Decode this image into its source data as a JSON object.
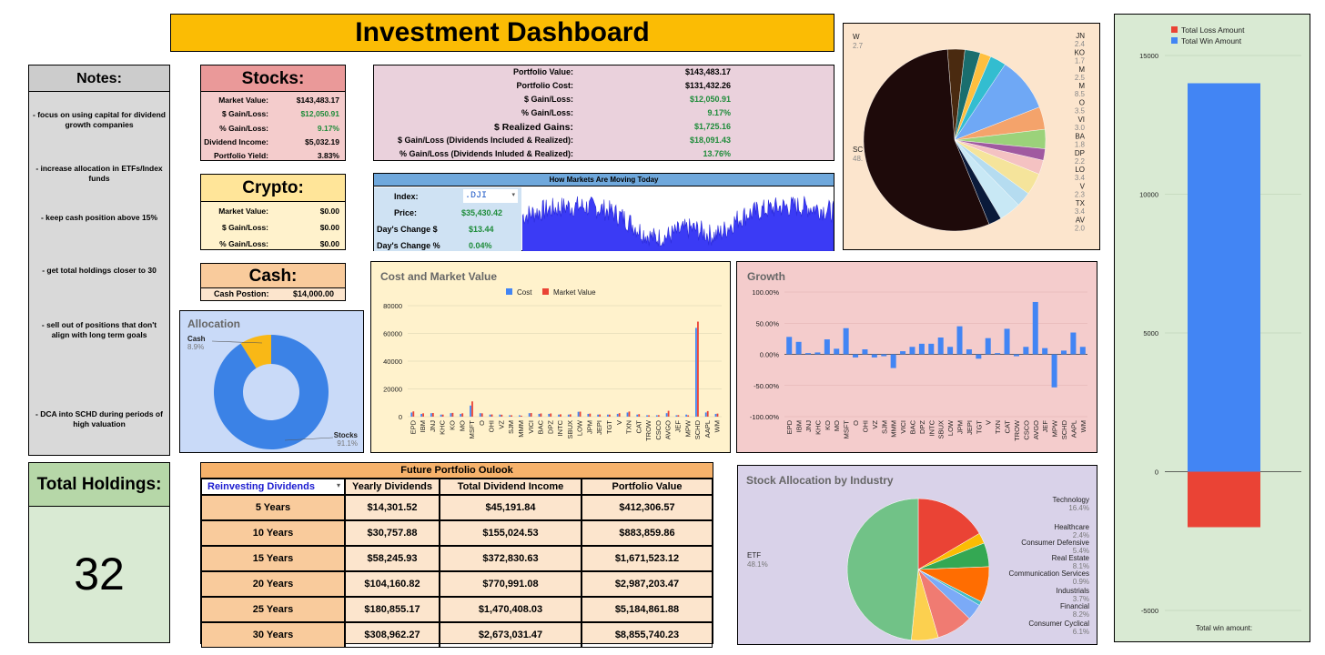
{
  "title": "Investment Dashboard",
  "notes": {
    "header": "Notes:",
    "items": [
      "- focus on using capital for dividend growth companies",
      "- increase allocation in ETFs/Index funds",
      "- keep cash position above 15%",
      "- get total holdings closer to 30",
      "- sell out of positions that don't align with long term goals",
      "- DCA into SCHD during periods of high valuation"
    ]
  },
  "total_holdings": {
    "label": "Total Holdings:",
    "value": "32"
  },
  "stocks": {
    "header": "Stocks:",
    "rows": [
      {
        "label": "Market Value:",
        "value": "$143,483.17",
        "color": "#000000"
      },
      {
        "label": "$ Gain/Loss:",
        "value": "$12,050.91",
        "color": "#1e8c3a"
      },
      {
        "label": "% Gain/Loss:",
        "value": "9.17%",
        "color": "#1e8c3a"
      },
      {
        "label": "Dividend Income:",
        "value": "$5,032.19",
        "color": "#000000"
      },
      {
        "label": "Portfolio Yield:",
        "value": "3.83%",
        "color": "#000000"
      }
    ]
  },
  "crypto": {
    "header": "Crypto:",
    "rows": [
      {
        "label": "Market Value:",
        "value": "$0.00"
      },
      {
        "label": "$ Gain/Loss:",
        "value": "$0.00"
      },
      {
        "label": "% Gain/Loss:",
        "value": "$0.00"
      }
    ]
  },
  "cash": {
    "header": "Cash:",
    "label": "Cash Postion:",
    "value": "$14,000.00"
  },
  "portfolio": {
    "rows": [
      {
        "label": "Portfolio Value:",
        "value": "$143,483.17",
        "color": "#000000"
      },
      {
        "label": "Portfolio Cost:",
        "value": "$131,432.26",
        "color": "#000000"
      },
      {
        "label": "$ Gain/Loss:",
        "value": "$12,050.91",
        "color": "#1e8c3a"
      },
      {
        "label": "% Gain/Loss:",
        "value": "9.17%",
        "color": "#1e8c3a"
      },
      {
        "label": "$ Realized Gains:",
        "value": "$1,725.16",
        "color": "#1e8c3a"
      },
      {
        "label": "$ Gain/Loss (Dividends Included & Realized):",
        "value": "$18,091.43",
        "color": "#1e8c3a"
      },
      {
        "label": "% Gain/Loss (Dividends Inluded & Realized):",
        "value": "13.76%",
        "color": "#1e8c3a"
      }
    ]
  },
  "markets": {
    "header": "How Markets Are Moving Today",
    "index_label": "Index:",
    "index_value": ".DJI",
    "price_label": "Price:",
    "price_value": "$35,430.42",
    "change_label": "Day's Change $",
    "change_value": "$13.44",
    "pct_label": "Day's Change %",
    "pct_value": "0.04%"
  },
  "future": {
    "header": "Future Portfolio Oulook",
    "select_value": "Reinvesting Dividends",
    "columns": [
      "Yearly Dividends",
      "Total Dividend Income",
      "Portfolio Value"
    ],
    "rows": [
      {
        "period": "5 Years",
        "yearly": "$14,301.52",
        "total": "$45,191.84",
        "value": "$412,306.57"
      },
      {
        "period": "10 Years",
        "yearly": "$30,757.88",
        "total": "$155,024.53",
        "value": "$883,859.86"
      },
      {
        "period": "15 Years",
        "yearly": "$58,245.93",
        "total": "$372,830.63",
        "value": "$1,671,523.12"
      },
      {
        "period": "20 Years",
        "yearly": "$104,160.82",
        "total": "$770,991.08",
        "value": "$2,987,203.47"
      },
      {
        "period": "25 Years",
        "yearly": "$180,855.17",
        "total": "$1,470,408.03",
        "value": "$5,184,861.88"
      },
      {
        "period": "30 Years",
        "yearly": "$308,962.27",
        "total": "$2,673,031.47",
        "value": "$8,855,740.23"
      }
    ]
  },
  "chart_data": [
    {
      "id": "holdings_pie",
      "type": "pie",
      "labels": [
        "W",
        "JN",
        "KO",
        "M",
        "M",
        "O",
        "VI",
        "BA",
        "DP",
        "LO",
        "V",
        "TX",
        "AV",
        "SC"
      ],
      "values": [
        2.7,
        2.4,
        1.7,
        2.5,
        8.5,
        3.5,
        3.0,
        1.8,
        2.2,
        3.4,
        2.3,
        3.4,
        2.0,
        48.0
      ],
      "value_labels": [
        "2.7",
        "2.4",
        "1.7",
        "2.5",
        "8.5",
        "3.5",
        "3.0",
        "1.8",
        "2.2",
        "3.4",
        "2.3",
        "3.4",
        "2.0",
        "48."
      ],
      "colors": [
        "#4a2a10",
        "#1a6e6e",
        "#ffbf3f",
        "#33bdd0",
        "#6fa8f5",
        "#f4a36b",
        "#9bd27a",
        "#a05aa0",
        "#f4c2c2",
        "#f5e49b",
        "#b5dcf0",
        "#c8e8f5",
        "#0a1a3a",
        "#1e0a0a"
      ]
    },
    {
      "id": "allocation",
      "type": "pie",
      "title": "Allocation",
      "labels": [
        "Cash",
        "Stocks"
      ],
      "values": [
        8.9,
        91.1
      ],
      "value_labels": [
        "8.9%",
        "91.1%"
      ],
      "colors": [
        "#f9b816",
        "#3b82e6"
      ]
    },
    {
      "id": "cost_market",
      "type": "bar",
      "title": "Cost and Market Value",
      "legend": [
        "Cost",
        "Market Value"
      ],
      "legend_position": "top",
      "categories": [
        "EPD",
        "IBM",
        "JNJ",
        "KHC",
        "KO",
        "MO",
        "MSFT",
        "O",
        "OHI",
        "VZ",
        "SJM",
        "MMM",
        "VICI",
        "BAC",
        "DPZ",
        "INTC",
        "SBUX",
        "LOW",
        "JPM",
        "JEPI",
        "TGT",
        "V",
        "TXN",
        "CAT",
        "TROW",
        "CSCO",
        "AVGO",
        "JEF",
        "MPW",
        "SCHD",
        "AAPL",
        "WM"
      ],
      "series": [
        {
          "name": "Cost",
          "color": "#4285f4",
          "values": [
            3000,
            2000,
            2500,
            1500,
            2500,
            2000,
            8000,
            2500,
            1500,
            1500,
            1000,
            1000,
            2500,
            2000,
            2000,
            1500,
            1500,
            3500,
            2000,
            1500,
            1500,
            2000,
            3000,
            1500,
            1000,
            1000,
            2500,
            1000,
            1500,
            64000,
            3000,
            2000
          ]
        },
        {
          "name": "Market Value",
          "color": "#ea4335",
          "values": [
            3800,
            2400,
            2600,
            1500,
            2700,
            2400,
            11000,
            2400,
            1600,
            1400,
            1000,
            700,
            2600,
            2300,
            2300,
            1700,
            1700,
            3600,
            2200,
            1600,
            1500,
            2500,
            3700,
            1800,
            1000,
            1100,
            4200,
            1100,
            1000,
            68500,
            4000,
            2200
          ]
        }
      ],
      "ylim": [
        0,
        80000
      ],
      "yticks": [
        "0",
        "20000",
        "40000",
        "60000",
        "80000"
      ]
    },
    {
      "id": "growth",
      "type": "bar",
      "title": "Growth",
      "categories": [
        "EPD",
        "IBM",
        "JNJ",
        "KHC",
        "KO",
        "MO",
        "MSFT",
        "O",
        "OHI",
        "VZ",
        "SJM",
        "MMM",
        "VICI",
        "BAC",
        "DPZ",
        "INTC",
        "SBUX",
        "LOW",
        "JPM",
        "JEPI",
        "TGT",
        "V",
        "TXN",
        "CAT",
        "TROW",
        "CSCO",
        "AVGO",
        "JEF",
        "MPW",
        "SCHD",
        "AAPL",
        "WM"
      ],
      "values": [
        28,
        20,
        2,
        3,
        24,
        9,
        42,
        -5,
        8,
        -5,
        -3,
        -22,
        5,
        12,
        17,
        17,
        27,
        12,
        45,
        8,
        -7,
        26,
        2,
        41,
        -3,
        12,
        84,
        10,
        -53,
        6,
        35,
        12
      ],
      "ylim": [
        -100,
        100
      ],
      "yticks": [
        "100.00%",
        "50.00%",
        "0.00%",
        "-50.00%",
        "-100.00%"
      ]
    },
    {
      "id": "industry",
      "type": "pie",
      "title": "Stock Allocation by Industry",
      "labels": [
        "Technology",
        "Healthcare",
        "Consumer Defensive",
        "Real Estate",
        "Communication Services",
        "Industrials",
        "Financial",
        "Consumer Cyclical",
        "ETF"
      ],
      "values": [
        16.4,
        2.4,
        5.4,
        8.1,
        0.9,
        3.7,
        8.2,
        6.1,
        48.1
      ],
      "value_labels": [
        "16.4%",
        "2.4%",
        "5.4%",
        "8.1%",
        "0.9%",
        "3.7%",
        "8.2%",
        "6.1%",
        "48.1%"
      ],
      "colors": [
        "#ea4335",
        "#fbbc04",
        "#34a853",
        "#ff6d01",
        "#46bdc6",
        "#7baaf7",
        "#f07b72",
        "#fcd04f",
        "#71c287"
      ]
    },
    {
      "id": "win_loss",
      "type": "bar",
      "legend": [
        "Total Loss Amount",
        "Total Win Amount"
      ],
      "legend_colors": [
        "#ea4335",
        "#4285f4"
      ],
      "xlabel": "Total win amount:",
      "values": {
        "loss": -2000,
        "win": 14000
      },
      "ylim": [
        -5000,
        15000
      ],
      "yticks": [
        "15000",
        "10000",
        "5000",
        "0",
        "-5000"
      ]
    }
  ]
}
